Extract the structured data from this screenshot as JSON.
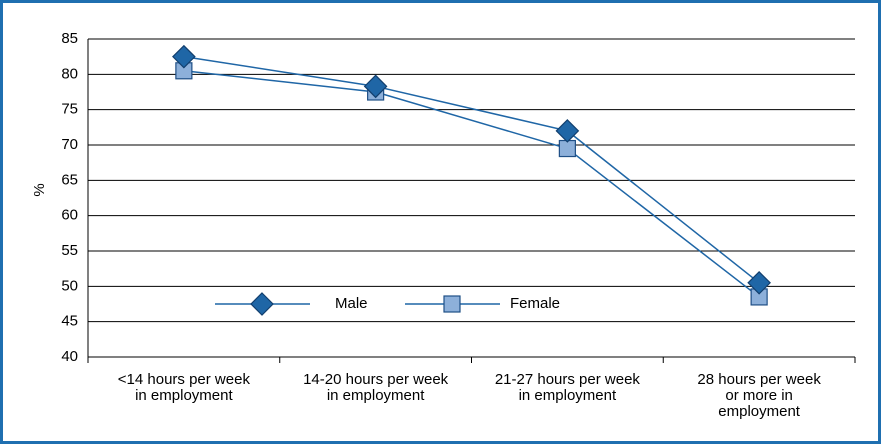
{
  "chart_data": {
    "type": "line",
    "ylabel": "%",
    "categories": [
      "<14 hours per week\nin employment",
      "14-20 hours per week\nin employment",
      "21-27 hours per week\nin employment",
      "28 hours per week\nor more in\nemployment"
    ],
    "series": [
      {
        "name": "Male",
        "color": "#1f66a6",
        "marker": "diamond",
        "values": [
          82.5,
          78.3,
          72,
          50.5
        ]
      },
      {
        "name": "Female",
        "color": "#8db0da",
        "marker": "square",
        "values": [
          80.5,
          77.5,
          69.5,
          48.5
        ]
      }
    ],
    "ylim": [
      40,
      85
    ],
    "yticks": [
      40,
      45,
      50,
      55,
      60,
      65,
      70,
      75,
      80,
      85
    ],
    "grid": true
  }
}
